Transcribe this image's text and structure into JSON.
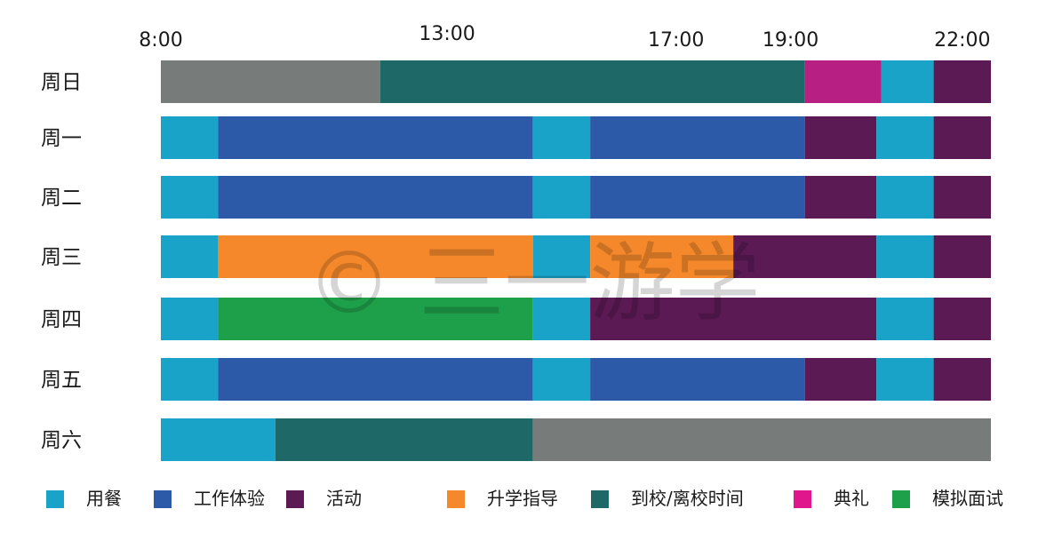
{
  "chart_data": {
    "type": "bar",
    "orientation": "horizontal-stacked-schedule",
    "x_ticks": [
      "8:00",
      "13:00",
      "17:00",
      "19:00",
      "22:00"
    ],
    "xlim": [
      "8:00",
      "22:30"
    ],
    "categories": [
      "周日",
      "周一",
      "周二",
      "周三",
      "周四",
      "周五",
      "周六"
    ],
    "legend": [
      {
        "key": "meal",
        "label": "用餐",
        "color": "#1aa3c8"
      },
      {
        "key": "work",
        "label": "工作体验",
        "color": "#2c5aa8"
      },
      {
        "key": "activity",
        "label": "活动",
        "color": "#5c1a55"
      },
      {
        "key": "guidance",
        "label": "升学指导",
        "color": "#f4882a"
      },
      {
        "key": "arrival",
        "label": "到校/离校时间",
        "color": "#1f6868"
      },
      {
        "key": "ceremony",
        "label": "典礼",
        "color": "#e0168c"
      },
      {
        "key": "interview",
        "label": "模拟面试",
        "color": "#1ea04a"
      }
    ],
    "extra_colors": {
      "free": "#777b7a",
      "ceremony_bar": "#b81f82"
    },
    "rows": [
      {
        "day": "周日",
        "segments": [
          {
            "start": "8:00",
            "end": "11:50",
            "type": "free"
          },
          {
            "start": "11:50",
            "end": "19:15",
            "type": "arrival"
          },
          {
            "start": "19:15",
            "end": "20:35",
            "type": "ceremony"
          },
          {
            "start": "20:35",
            "end": "21:30",
            "type": "meal"
          },
          {
            "start": "21:30",
            "end": "22:30",
            "type": "activity"
          }
        ]
      },
      {
        "day": "周一",
        "segments": [
          {
            "start": "8:00",
            "end": "9:00",
            "type": "meal"
          },
          {
            "start": "9:00",
            "end": "14:30",
            "type": "work"
          },
          {
            "start": "14:30",
            "end": "15:30",
            "type": "meal"
          },
          {
            "start": "15:30",
            "end": "19:15",
            "type": "work"
          },
          {
            "start": "19:15",
            "end": "20:30",
            "type": "activity"
          },
          {
            "start": "20:30",
            "end": "21:30",
            "type": "meal"
          },
          {
            "start": "21:30",
            "end": "22:30",
            "type": "activity"
          }
        ]
      },
      {
        "day": "周二",
        "segments": [
          {
            "start": "8:00",
            "end": "9:00",
            "type": "meal"
          },
          {
            "start": "9:00",
            "end": "14:30",
            "type": "work"
          },
          {
            "start": "14:30",
            "end": "15:30",
            "type": "meal"
          },
          {
            "start": "15:30",
            "end": "19:15",
            "type": "work"
          },
          {
            "start": "19:15",
            "end": "20:30",
            "type": "activity"
          },
          {
            "start": "20:30",
            "end": "21:30",
            "type": "meal"
          },
          {
            "start": "21:30",
            "end": "22:30",
            "type": "activity"
          }
        ]
      },
      {
        "day": "周三",
        "segments": [
          {
            "start": "8:00",
            "end": "9:00",
            "type": "meal"
          },
          {
            "start": "9:00",
            "end": "14:30",
            "type": "guidance"
          },
          {
            "start": "14:30",
            "end": "15:30",
            "type": "meal"
          },
          {
            "start": "15:30",
            "end": "18:00",
            "type": "guidance"
          },
          {
            "start": "18:00",
            "end": "20:30",
            "type": "activity"
          },
          {
            "start": "20:30",
            "end": "21:30",
            "type": "meal"
          },
          {
            "start": "21:30",
            "end": "22:30",
            "type": "activity"
          }
        ]
      },
      {
        "day": "周四",
        "segments": [
          {
            "start": "8:00",
            "end": "9:00",
            "type": "meal"
          },
          {
            "start": "9:00",
            "end": "14:30",
            "type": "interview"
          },
          {
            "start": "14:30",
            "end": "15:30",
            "type": "meal"
          },
          {
            "start": "15:30",
            "end": "20:30",
            "type": "activity"
          },
          {
            "start": "20:30",
            "end": "21:30",
            "type": "meal"
          },
          {
            "start": "21:30",
            "end": "22:30",
            "type": "activity"
          }
        ]
      },
      {
        "day": "周五",
        "segments": [
          {
            "start": "8:00",
            "end": "9:00",
            "type": "meal"
          },
          {
            "start": "9:00",
            "end": "14:30",
            "type": "work"
          },
          {
            "start": "14:30",
            "end": "15:30",
            "type": "meal"
          },
          {
            "start": "15:30",
            "end": "19:15",
            "type": "work"
          },
          {
            "start": "19:15",
            "end": "20:30",
            "type": "activity"
          },
          {
            "start": "20:30",
            "end": "21:30",
            "type": "meal"
          },
          {
            "start": "21:30",
            "end": "22:30",
            "type": "activity"
          }
        ]
      },
      {
        "day": "周六",
        "segments": [
          {
            "start": "8:00",
            "end": "10:00",
            "type": "meal"
          },
          {
            "start": "10:00",
            "end": "14:30",
            "type": "arrival"
          },
          {
            "start": "14:30",
            "end": "22:30",
            "type": "free"
          }
        ]
      }
    ],
    "grid": false,
    "legend_placement": "bottom"
  },
  "watermark": "© 三一游学"
}
